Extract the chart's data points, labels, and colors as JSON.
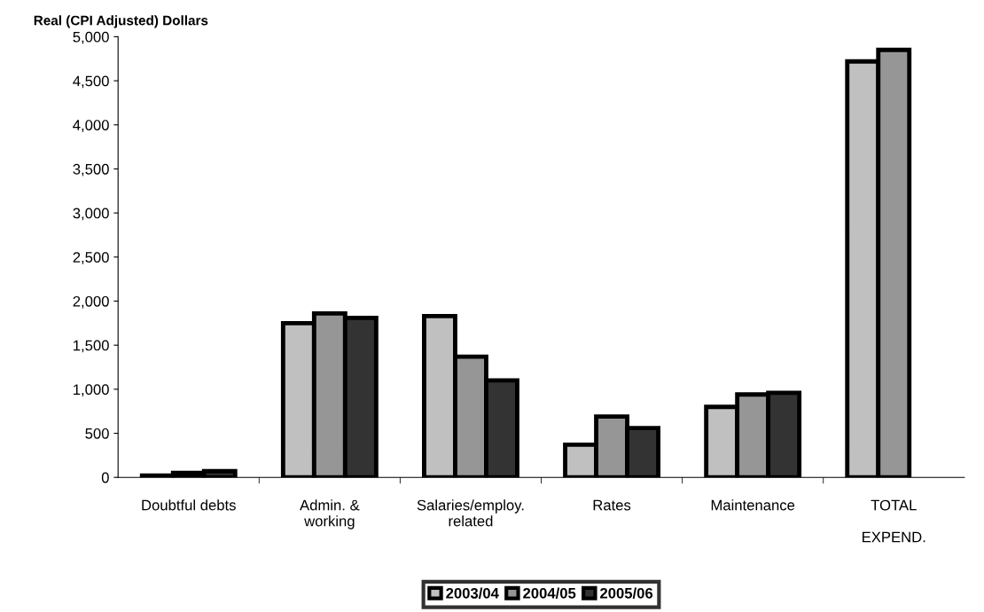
{
  "chart_data": {
    "type": "bar",
    "ylabel": "Real (CPI Adjusted) Dollars",
    "categories": [
      "Doubtful debts",
      "Admin. &\nworking",
      "Salaries/employ.\nrelated",
      "Rates",
      "Maintenance",
      "TOTAL\n\nEXPEND."
    ],
    "series": [
      {
        "name": "2003/04",
        "color": "#c0c0c0",
        "values": [
          20,
          1750,
          1830,
          370,
          800,
          4720
        ]
      },
      {
        "name": "2004/05",
        "color": "#969696",
        "values": [
          50,
          1860,
          1370,
          690,
          940,
          4850
        ]
      },
      {
        "name": "2005/06",
        "color": "#333333",
        "values": [
          70,
          1810,
          1100,
          560,
          960,
          null
        ]
      }
    ],
    "ylim": [
      0,
      5000
    ],
    "yticks": [
      {
        "value": 0,
        "label": "0"
      },
      {
        "value": 500,
        "label": "500"
      },
      {
        "value": 1000,
        "label": "1,000"
      },
      {
        "value": 1500,
        "label": "1,500"
      },
      {
        "value": 2000,
        "label": "2,000"
      },
      {
        "value": 2500,
        "label": "2,500"
      },
      {
        "value": 3000,
        "label": "3,000"
      },
      {
        "value": 3500,
        "label": "3,500"
      },
      {
        "value": 4000,
        "label": "4,000"
      },
      {
        "value": 4500,
        "label": "4,500"
      },
      {
        "value": 5000,
        "label": "5,000"
      }
    ],
    "grid": false,
    "legend": "bottom"
  }
}
